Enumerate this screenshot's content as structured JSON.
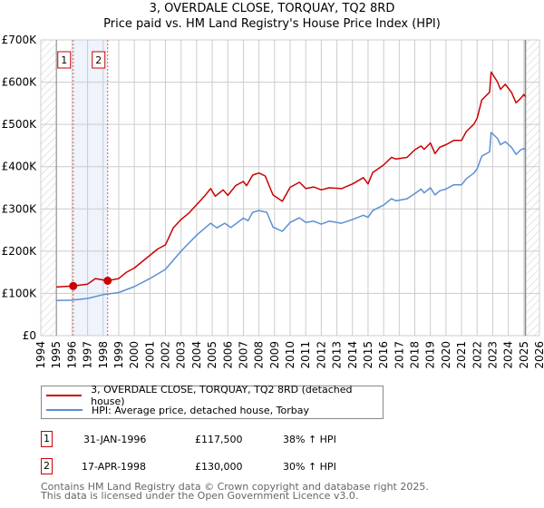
{
  "chart_data": {
    "type": "line",
    "title": "3, OVERDALE CLOSE, TORQUAY, TQ2 8RD",
    "subtitle": "Price paid vs. HM Land Registry's House Price Index (HPI)",
    "xlabel": "",
    "ylabel": "",
    "xlim": [
      1994,
      2026
    ],
    "ylim": [
      0,
      700000
    ],
    "grid": true,
    "x_ticks": [
      "1994",
      "1995",
      "1996",
      "1997",
      "1998",
      "1999",
      "2000",
      "2001",
      "2002",
      "2003",
      "2004",
      "2005",
      "2006",
      "2007",
      "2008",
      "2009",
      "2010",
      "2011",
      "2012",
      "2013",
      "2014",
      "2015",
      "2016",
      "2017",
      "2018",
      "2019",
      "2020",
      "2021",
      "2022",
      "2023",
      "2024",
      "2025",
      "2026"
    ],
    "y_ticks": [
      {
        "value": 0,
        "label": "£0"
      },
      {
        "value": 100000,
        "label": "£100K"
      },
      {
        "value": 200000,
        "label": "£200K"
      },
      {
        "value": 300000,
        "label": "£300K"
      },
      {
        "value": 400000,
        "label": "£400K"
      },
      {
        "value": 500000,
        "label": "£500K"
      },
      {
        "value": 600000,
        "label": "£600K"
      },
      {
        "value": 700000,
        "label": "£700K"
      }
    ],
    "data_range": [
      1995,
      2025.1
    ],
    "highlight_band": [
      1996.08,
      1998.29
    ],
    "series": [
      {
        "name": "3, OVERDALE CLOSE, TORQUAY, TQ2 8RD (detached house)",
        "color": "#cc0000",
        "x": [
          1995,
          1996.08,
          1997,
          1997.5,
          1998.29,
          1999,
          1999.5,
          2000,
          2000.5,
          2001,
          2001.5,
          2002,
          2002.5,
          2003,
          2003.5,
          2004,
          2004.5,
          2004.9,
          2005.2,
          2005.7,
          2006,
          2006.5,
          2007,
          2007.2,
          2007.6,
          2008,
          2008.4,
          2008.9,
          2009.5,
          2010,
          2010.6,
          2011,
          2011.5,
          2012,
          2012.5,
          2013.3,
          2014,
          2014.7,
          2015,
          2015.3,
          2016,
          2016.5,
          2016.8,
          2017.5,
          2018,
          2018.4,
          2018.6,
          2019,
          2019.3,
          2019.6,
          2020,
          2020.5,
          2021,
          2021.3,
          2021.8,
          2022,
          2022.3,
          2022.8,
          2022.9,
          2023.3,
          2023.5,
          2023.8,
          2024.2,
          2024.5,
          2024.8,
          2025,
          2025.1
        ],
        "y": [
          115000,
          117500,
          122000,
          135000,
          130000,
          135000,
          150000,
          160000,
          175000,
          190000,
          205000,
          215000,
          255000,
          275000,
          290000,
          310000,
          330000,
          348000,
          330000,
          345000,
          332000,
          355000,
          365000,
          355000,
          380000,
          385000,
          378000,
          333000,
          318000,
          351000,
          363000,
          348000,
          352000,
          345000,
          350000,
          348000,
          359000,
          374000,
          359000,
          386000,
          404000,
          422000,
          418000,
          422000,
          440000,
          449000,
          441000,
          456000,
          431000,
          446000,
          452000,
          462000,
          462000,
          483000,
          501000,
          515000,
          558000,
          576000,
          624000,
          601000,
          583000,
          595000,
          576000,
          551000,
          562000,
          571000,
          566000
        ]
      },
      {
        "name": "HPI: Average price, detached house, Torbay",
        "color": "#5b8fd4",
        "x": [
          1995,
          1996,
          1997,
          1998,
          1999,
          2000,
          2001,
          2002,
          2003,
          2004,
          2004.9,
          2005.3,
          2005.8,
          2006.2,
          2007,
          2007.3,
          2007.6,
          2008,
          2008.5,
          2008.9,
          2009.5,
          2010,
          2010.6,
          2011,
          2011.5,
          2012,
          2012.5,
          2013.3,
          2014,
          2014.7,
          2015,
          2015.3,
          2016,
          2016.5,
          2016.8,
          2017.5,
          2018,
          2018.4,
          2018.6,
          2019,
          2019.3,
          2019.6,
          2020,
          2020.5,
          2021,
          2021.3,
          2021.8,
          2022,
          2022.3,
          2022.8,
          2022.9,
          2023.3,
          2023.5,
          2023.8,
          2024.2,
          2024.5,
          2024.8,
          2025,
          2025.1
        ],
        "y": [
          83000,
          84000,
          88000,
          97000,
          102000,
          116000,
          135000,
          157000,
          200000,
          238000,
          266000,
          255000,
          266000,
          256000,
          278000,
          272000,
          292000,
          296000,
          292000,
          257000,
          247000,
          268000,
          279000,
          268000,
          271000,
          264000,
          271000,
          266000,
          275000,
          285000,
          280000,
          296000,
          309000,
          324000,
          319000,
          324000,
          336000,
          347000,
          338000,
          350000,
          333000,
          343000,
          347000,
          357000,
          357000,
          371000,
          385000,
          395000,
          425000,
          435000,
          481000,
          467000,
          452000,
          459000,
          446000,
          429000,
          440000,
          443000,
          440000
        ]
      }
    ],
    "annotations": [
      {
        "label": "1",
        "x": 1996.08,
        "y": 117500
      },
      {
        "label": "2",
        "x": 1998.29,
        "y": 130000
      }
    ]
  },
  "transactions": [
    {
      "num": "1",
      "date": "31-JAN-1996",
      "price": "£117,500",
      "hpi": "38% ↑ HPI"
    },
    {
      "num": "2",
      "date": "17-APR-1998",
      "price": "£130,000",
      "hpi": "30% ↑ HPI"
    }
  ],
  "footer": {
    "line1": "Contains HM Land Registry data © Crown copyright and database right 2025.",
    "line2": "This data is licensed under the Open Government Licence v3.0."
  }
}
